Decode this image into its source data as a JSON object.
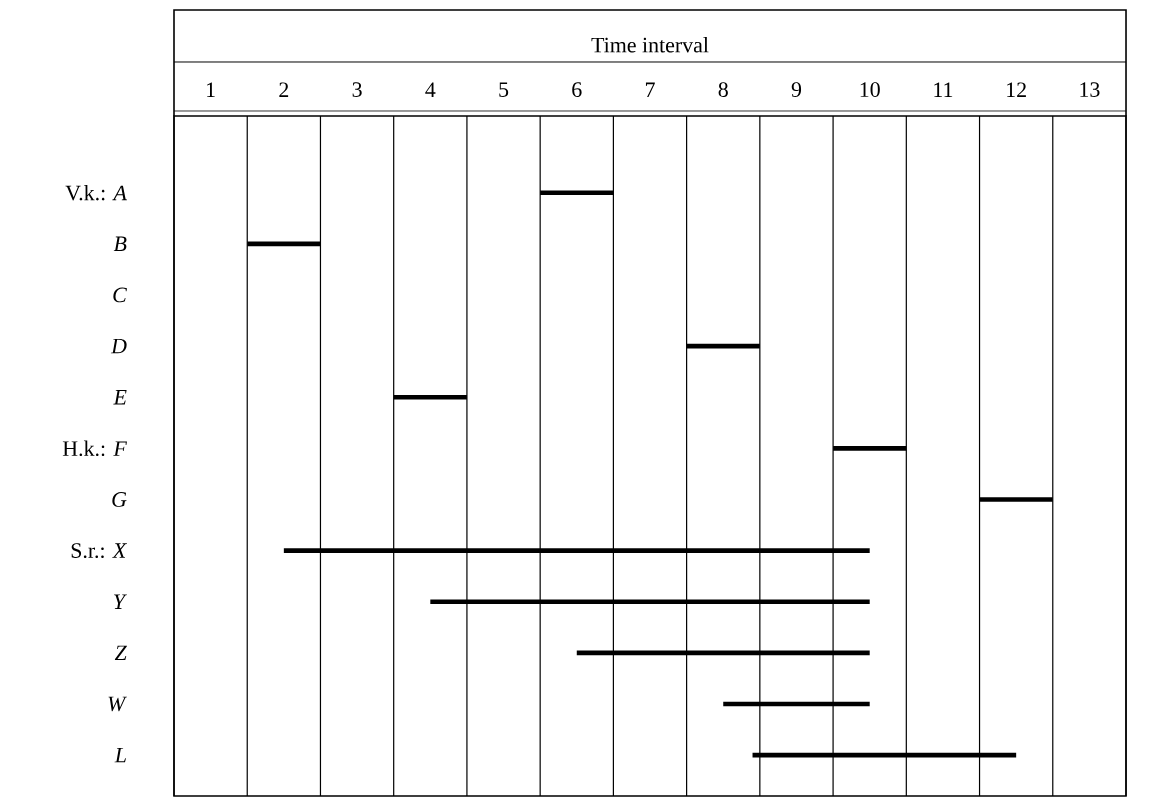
{
  "chart_data": {
    "type": "bar",
    "orientation": "horizontal",
    "xlabel": "Time interval",
    "categories": [
      "V.k.: *A*",
      "*B*",
      "*C*",
      "*D*",
      "*E*",
      "H.k.: *F*",
      "*G*",
      "S.r.: *X*",
      "*Y*",
      "*Z*",
      "*W*",
      "*L*"
    ],
    "base": [
      5,
      1,
      null,
      7,
      3,
      9,
      11,
      1.5,
      3.5,
      5.5,
      7.5,
      7.9
    ],
    "values": [
      1,
      1,
      null,
      1,
      1,
      1,
      1,
      8,
      6,
      4,
      2,
      3.6
    ],
    "color": "#000000",
    "xlim": [
      0,
      13
    ],
    "xticks": [
      {
        "value": 0,
        "label": null
      },
      {
        "value": 0.5,
        "label": "1"
      },
      {
        "value": 1,
        "label": null
      },
      {
        "value": 1.5,
        "label": "2"
      },
      {
        "value": 2,
        "label": null
      },
      {
        "value": 2.5,
        "label": "3"
      },
      {
        "value": 3,
        "label": null
      },
      {
        "value": 3.5,
        "label": "4"
      },
      {
        "value": 4,
        "label": null
      },
      {
        "value": 4.5,
        "label": "5"
      },
      {
        "value": 5,
        "label": null
      },
      {
        "value": 5.5,
        "label": "6"
      },
      {
        "value": 6,
        "label": null
      },
      {
        "value": 6.5,
        "label": "7"
      },
      {
        "value": 7,
        "label": null
      },
      {
        "value": 7.5,
        "label": "8"
      },
      {
        "value": 8,
        "label": null
      },
      {
        "value": 8.5,
        "label": "9"
      },
      {
        "value": 9,
        "label": null
      },
      {
        "value": 9.5,
        "label": "10"
      },
      {
        "value": 10,
        "label": null
      },
      {
        "value": 10.5,
        "label": "11"
      },
      {
        "value": 11,
        "label": null
      },
      {
        "value": 11.5,
        "label": "12"
      },
      {
        "value": 12,
        "label": null
      },
      {
        "value": 12.5,
        "label": "13"
      },
      {
        "value": 13,
        "label": null
      }
    ],
    "grid": "x"
  }
}
